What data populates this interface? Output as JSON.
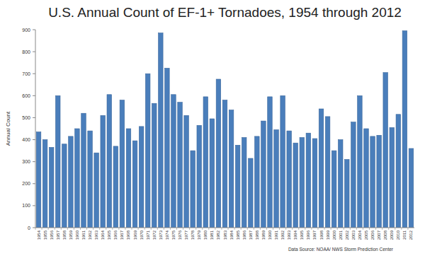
{
  "chart_data": {
    "type": "bar",
    "title": "U.S. Annual Count of EF-1+ Tornadoes, 1954 through 2012",
    "y_label": "Annual Count",
    "annotations": [
      "Data Source: NOAA/ NWS Storm Prediction Center"
    ],
    "categories": [
      "1954",
      "1955",
      "1956",
      "1957",
      "1958",
      "1959",
      "1960",
      "1961",
      "1962",
      "1963",
      "1964",
      "1965",
      "1966",
      "1967",
      "1968",
      "1969",
      "1970",
      "1971",
      "1972",
      "1973",
      "1974",
      "1975",
      "1976",
      "1977",
      "1978",
      "1979",
      "1980",
      "1981",
      "1982",
      "1983",
      "1984",
      "1985",
      "1986",
      "1987",
      "1988",
      "1989",
      "1990",
      "1991",
      "1992",
      "1993",
      "1994",
      "1995",
      "1996",
      "1997",
      "1998",
      "1999",
      "2000",
      "2001",
      "2002",
      "2003",
      "2004",
      "2005",
      "2006",
      "2007",
      "2008",
      "2009",
      "2010",
      "2011",
      "2012"
    ],
    "values": [
      435,
      400,
      365,
      600,
      380,
      415,
      450,
      520,
      440,
      340,
      510,
      605,
      370,
      580,
      450,
      395,
      460,
      700,
      565,
      885,
      725,
      605,
      570,
      510,
      350,
      465,
      595,
      495,
      675,
      580,
      535,
      375,
      410,
      315,
      415,
      485,
      595,
      445,
      600,
      440,
      385,
      410,
      430,
      405,
      540,
      505,
      350,
      400,
      310,
      480,
      600,
      450,
      415,
      420,
      705,
      455,
      515,
      895,
      360
    ],
    "color": "#4a7ebb",
    "ylim": [
      0,
      900
    ],
    "yticks": [
      0,
      100,
      200,
      300,
      400,
      500,
      600,
      700,
      800,
      900
    ],
    "grid": false
  }
}
